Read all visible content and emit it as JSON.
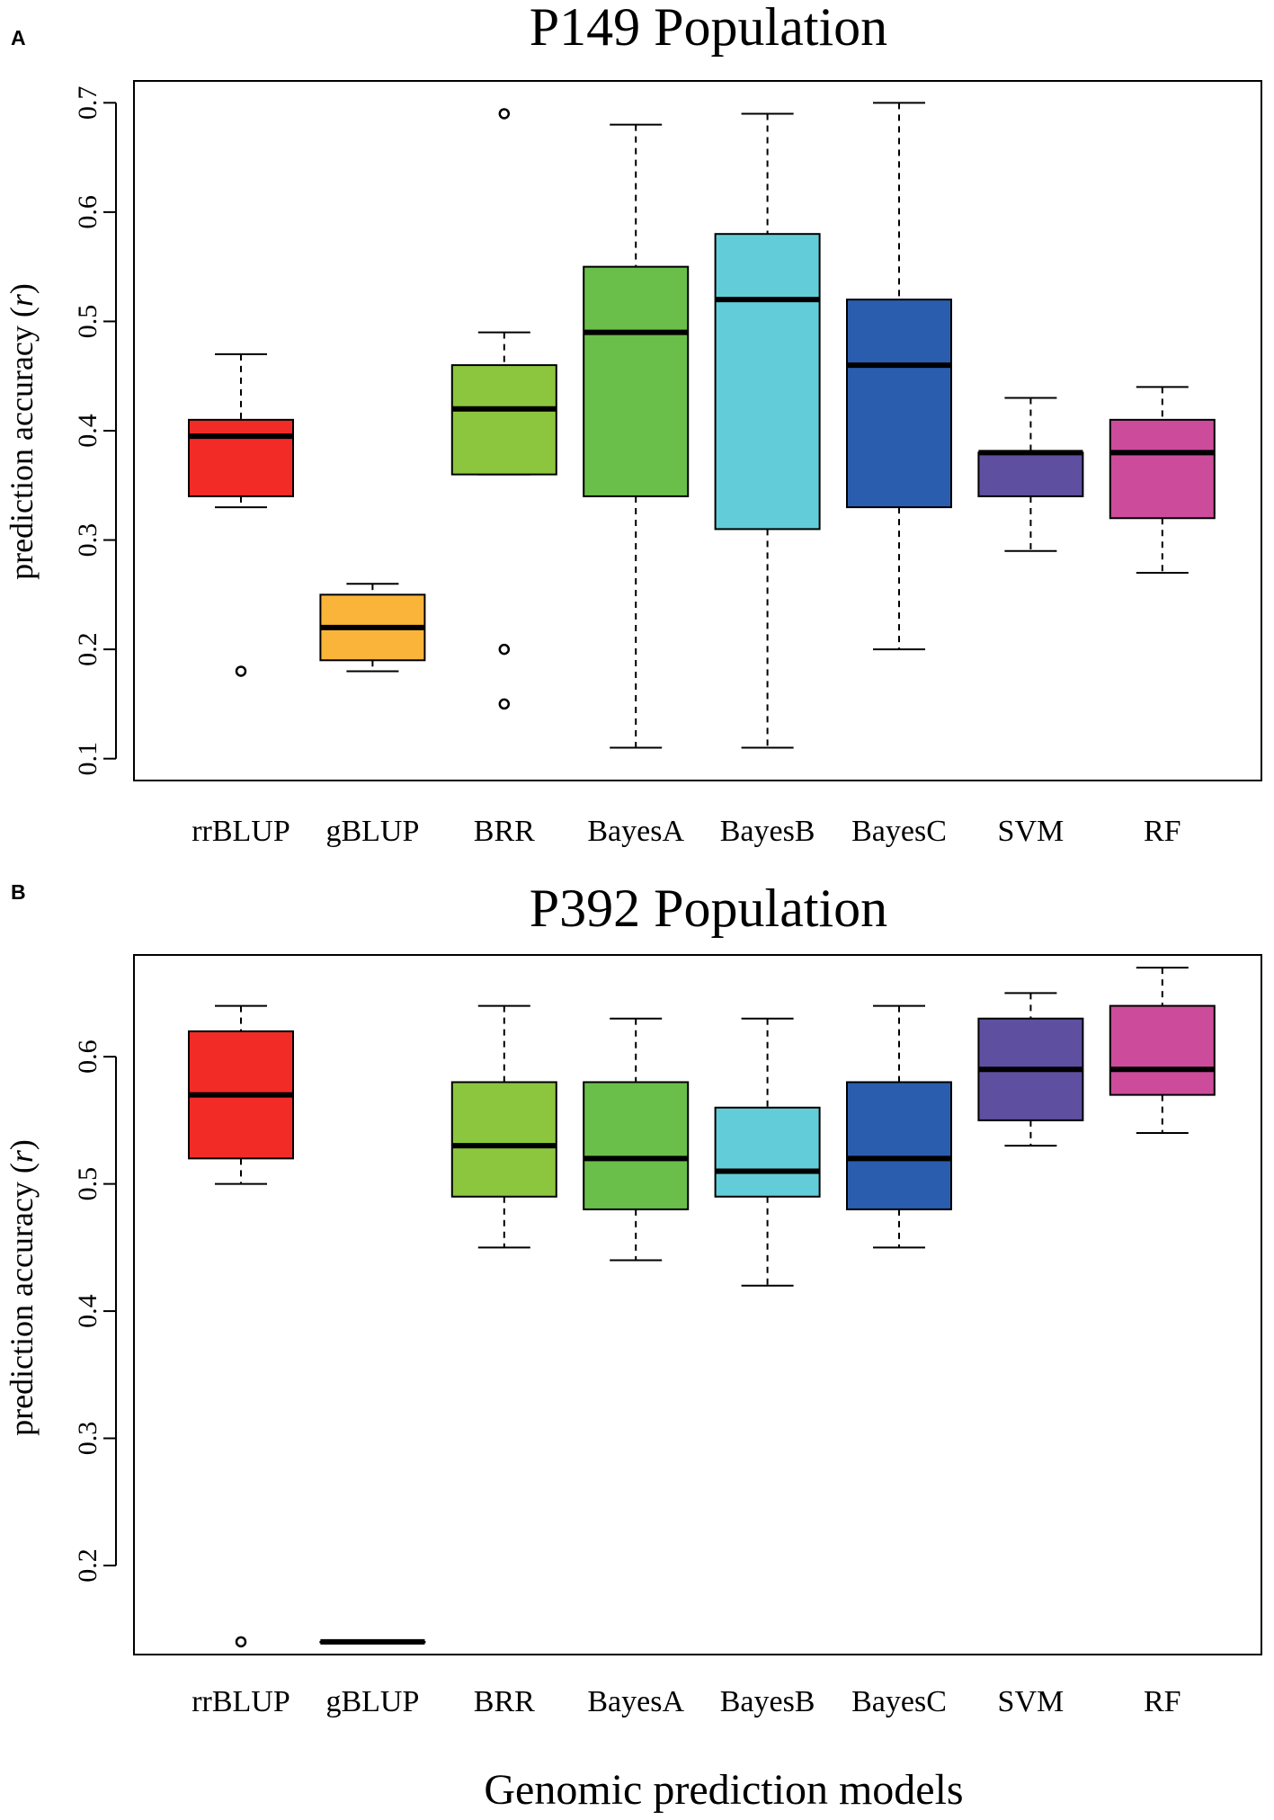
{
  "chart_data": [
    {
      "type": "boxplot",
      "panel_label": "A",
      "title": "P149 Population",
      "ylabel": "prediction accuracy (r)",
      "ylabel_main": "prediction accuracy (",
      "ylabel_var": "r",
      "ylabel_close": ")",
      "xlabel": "",
      "ylim": [
        0.08,
        0.72
      ],
      "yticks": [
        {
          "value": 0.1,
          "label": "0.1"
        },
        {
          "value": 0.2,
          "label": "0.2"
        },
        {
          "value": 0.3,
          "label": "0.3"
        },
        {
          "value": 0.4,
          "label": "0.4"
        },
        {
          "value": 0.5,
          "label": "0.5"
        },
        {
          "value": 0.6,
          "label": "0.6"
        },
        {
          "value": 0.7,
          "label": "0.7"
        }
      ],
      "boxes": [
        {
          "name": "rrBLUP",
          "color": "#F22B27",
          "whisker_low": 0.33,
          "q1": 0.34,
          "median": 0.395,
          "q3": 0.41,
          "whisker_high": 0.47,
          "outliers": [
            0.18
          ]
        },
        {
          "name": "gBLUP",
          "color": "#FBB43A",
          "whisker_low": 0.18,
          "q1": 0.19,
          "median": 0.22,
          "q3": 0.25,
          "whisker_high": 0.26,
          "outliers": []
        },
        {
          "name": "BRR",
          "color": "#8CC63F",
          "whisker_low": 0.36,
          "q1": 0.36,
          "median": 0.42,
          "q3": 0.46,
          "whisker_high": 0.49,
          "outliers": [
            0.69,
            0.2,
            0.15
          ]
        },
        {
          "name": "BayesA",
          "color": "#6ABF4B",
          "whisker_low": 0.11,
          "q1": 0.34,
          "median": 0.49,
          "q3": 0.55,
          "whisker_high": 0.68,
          "outliers": []
        },
        {
          "name": "BayesB",
          "color": "#62CDD8",
          "whisker_low": 0.11,
          "q1": 0.31,
          "median": 0.52,
          "q3": 0.58,
          "whisker_high": 0.69,
          "outliers": []
        },
        {
          "name": "BayesC",
          "color": "#2B5DAE",
          "whisker_low": 0.2,
          "q1": 0.33,
          "median": 0.46,
          "q3": 0.52,
          "whisker_high": 0.7,
          "outliers": []
        },
        {
          "name": "SVM",
          "color": "#5F4FA0",
          "whisker_low": 0.29,
          "q1": 0.34,
          "median": 0.38,
          "q3": 0.38,
          "whisker_high": 0.43,
          "outliers": []
        },
        {
          "name": "RF",
          "color": "#CC4C9B",
          "whisker_low": 0.27,
          "q1": 0.32,
          "median": 0.38,
          "q3": 0.41,
          "whisker_high": 0.44,
          "outliers": []
        }
      ]
    },
    {
      "type": "boxplot",
      "panel_label": "B",
      "title": "P392 Population",
      "ylabel": "prediction accuracy (r)",
      "ylabel_main": "prediction accuracy (",
      "ylabel_var": "r",
      "ylabel_close": ")",
      "xlabel": "Genomic prediction models",
      "ylim": [
        0.13,
        0.68
      ],
      "yticks": [
        {
          "value": 0.2,
          "label": "0.2"
        },
        {
          "value": 0.3,
          "label": "0.3"
        },
        {
          "value": 0.4,
          "label": "0.4"
        },
        {
          "value": 0.5,
          "label": "0.5"
        },
        {
          "value": 0.6,
          "label": "0.6"
        }
      ],
      "boxes": [
        {
          "name": "rrBLUP",
          "color": "#F22B27",
          "whisker_low": 0.5,
          "q1": 0.52,
          "median": 0.57,
          "q3": 0.62,
          "whisker_high": 0.64,
          "outliers": [
            0.14
          ]
        },
        {
          "name": "gBLUP",
          "color": "#FBB43A",
          "whisker_low": 0.14,
          "q1": 0.14,
          "median": 0.14,
          "q3": 0.14,
          "whisker_high": 0.14,
          "outliers": []
        },
        {
          "name": "BRR",
          "color": "#8CC63F",
          "whisker_low": 0.45,
          "q1": 0.49,
          "median": 0.53,
          "q3": 0.58,
          "whisker_high": 0.64,
          "outliers": []
        },
        {
          "name": "BayesA",
          "color": "#6ABF4B",
          "whisker_low": 0.44,
          "q1": 0.48,
          "median": 0.52,
          "q3": 0.58,
          "whisker_high": 0.63,
          "outliers": []
        },
        {
          "name": "BayesB",
          "color": "#62CDD8",
          "whisker_low": 0.42,
          "q1": 0.49,
          "median": 0.51,
          "q3": 0.56,
          "whisker_high": 0.63,
          "outliers": []
        },
        {
          "name": "BayesC",
          "color": "#2B5DAE",
          "whisker_low": 0.45,
          "q1": 0.48,
          "median": 0.52,
          "q3": 0.58,
          "whisker_high": 0.64,
          "outliers": []
        },
        {
          "name": "SVM",
          "color": "#5F4FA0",
          "whisker_low": 0.53,
          "q1": 0.55,
          "median": 0.59,
          "q3": 0.63,
          "whisker_high": 0.65,
          "outliers": []
        },
        {
          "name": "RF",
          "color": "#CC4C9B",
          "whisker_low": 0.54,
          "q1": 0.57,
          "median": 0.59,
          "q3": 0.64,
          "whisker_high": 0.67,
          "outliers": []
        }
      ]
    }
  ]
}
